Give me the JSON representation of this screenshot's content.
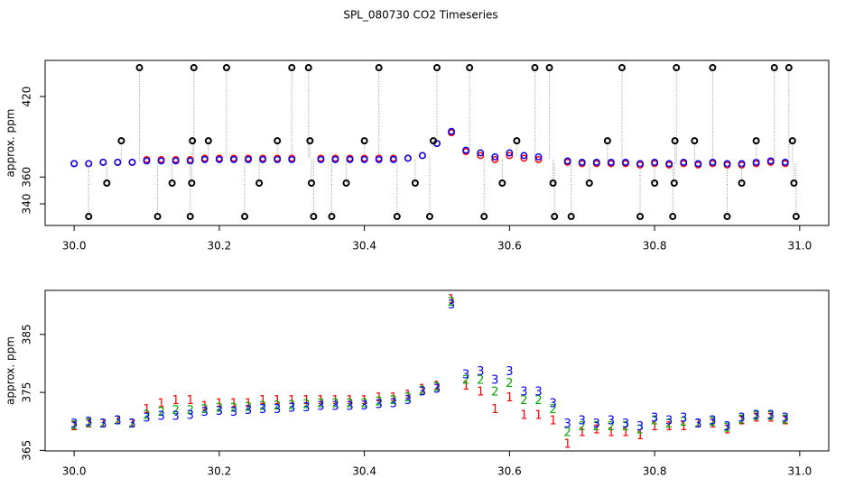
{
  "chart_data": [
    {
      "type": "scatter",
      "title": "SPL_080730  CO2 Timeseries",
      "ylabel": "approx. ppm",
      "xlim": [
        29.96,
        31.04
      ],
      "xticks": [
        {
          "value": 30,
          "label": "30.0"
        },
        {
          "value": 30.2,
          "label": "30.2"
        },
        {
          "value": 30.4,
          "label": "30.4"
        },
        {
          "value": 30.6,
          "label": "30.6"
        },
        {
          "value": 30.8,
          "label": "30.8"
        },
        {
          "value": 31,
          "label": "31.0"
        }
      ],
      "ylim": [
        323.9,
        446.9
      ],
      "yticks": [
        340,
        360,
        420
      ],
      "x": [
        30.0,
        30.02,
        30.04,
        30.06,
        30.08,
        30.1,
        30.12,
        30.14,
        30.16,
        30.18,
        30.2,
        30.22,
        30.24,
        30.26,
        30.28,
        30.3,
        30.32,
        30.34,
        30.36,
        30.38,
        30.4,
        30.42,
        30.44,
        30.46,
        30.48,
        30.5,
        30.52,
        30.54,
        30.56,
        30.58,
        30.6,
        30.62,
        30.64,
        30.66,
        30.68,
        30.7,
        30.72,
        30.74,
        30.76,
        30.78,
        30.8,
        30.82,
        30.84,
        30.86,
        30.88,
        30.9,
        30.92,
        30.94,
        30.96,
        30.98
      ],
      "series": [
        {
          "color": "#ff0000",
          "values": [
            370,
            370,
            371,
            371,
            371,
            373,
            373,
            373,
            373,
            374,
            374,
            374,
            374,
            374,
            374,
            374,
            null,
            374,
            374,
            374,
            374,
            374,
            374,
            374,
            376,
            385,
            393,
            379,
            376,
            373,
            376,
            374,
            373,
            null,
            371,
            370,
            370,
            370,
            370,
            369,
            370,
            369,
            370,
            369,
            370,
            369,
            369,
            370,
            371,
            370
          ]
        },
        {
          "color": "#0000ff",
          "values": [
            370,
            370,
            371,
            371,
            371,
            372,
            372,
            372,
            372,
            373,
            373,
            373,
            373,
            373,
            373,
            373,
            null,
            373,
            373,
            373,
            373,
            373,
            373,
            374,
            376,
            385,
            394,
            380,
            378,
            375,
            378,
            376,
            375,
            null,
            372,
            371,
            371,
            371,
            371,
            370,
            371,
            370,
            371,
            370,
            371,
            370,
            370,
            371,
            372,
            371
          ]
        },
        {
          "color": "#000000",
          "x": [
            30.02,
            30.045,
            30.065,
            30.09,
            30.115,
            30.135,
            30.16,
            30.162,
            30.163,
            30.165,
            30.185,
            30.21,
            30.235,
            30.255,
            30.28,
            30.3,
            30.323,
            30.325,
            30.327,
            30.33,
            30.355,
            30.375,
            30.4,
            30.42,
            30.445,
            30.47,
            30.49,
            30.495,
            30.5,
            30.545,
            30.565,
            30.59,
            30.61,
            30.635,
            30.655,
            30.66,
            30.662,
            30.685,
            30.71,
            30.735,
            30.755,
            30.78,
            30.8,
            30.825,
            30.827,
            30.828,
            30.83,
            30.855,
            30.88,
            30.9,
            30.92,
            30.94,
            30.965,
            30.985,
            30.99,
            30.992,
            30.995
          ],
          "values": [
            330.6,
            355.5,
            387,
            441.5,
            330.6,
            355.5,
            330.6,
            355.5,
            387,
            441.5,
            387,
            441.5,
            330.6,
            355.5,
            387,
            441.5,
            441.5,
            387,
            355.5,
            330.6,
            330.6,
            355.5,
            387,
            441.5,
            330.6,
            355.5,
            330.6,
            387,
            441.5,
            441.5,
            330.6,
            355.5,
            387,
            441.5,
            441.5,
            355.5,
            330.6,
            330.6,
            355.5,
            387,
            441.5,
            330.6,
            355.5,
            330.6,
            355.5,
            387,
            441.5,
            387,
            441.5,
            330.6,
            355.5,
            387,
            441.5,
            441.5,
            387,
            355.5,
            330.6
          ]
        }
      ]
    },
    {
      "type": "scatter",
      "ylabel": "approx. ppm",
      "xlim": [
        29.96,
        31.04
      ],
      "xticks": [
        {
          "value": 30,
          "label": "30.0"
        },
        {
          "value": 30.2,
          "label": "30.2"
        },
        {
          "value": 30.4,
          "label": "30.4"
        },
        {
          "value": 30.6,
          "label": "30.6"
        },
        {
          "value": 30.8,
          "label": "30.8"
        },
        {
          "value": 31,
          "label": "31.0"
        }
      ],
      "ylim": [
        364.9,
        392.6
      ],
      "yticks": [
        365,
        375,
        385
      ],
      "x": [
        30.0,
        30.02,
        30.04,
        30.06,
        30.08,
        30.1,
        30.12,
        30.14,
        30.16,
        30.18,
        30.2,
        30.22,
        30.24,
        30.26,
        30.28,
        30.3,
        30.32,
        30.34,
        30.36,
        30.38,
        30.4,
        30.42,
        30.44,
        30.46,
        30.48,
        30.5,
        30.52,
        30.54,
        30.56,
        30.58,
        30.6,
        30.62,
        30.64,
        30.66,
        30.68,
        30.7,
        30.72,
        30.74,
        30.76,
        30.78,
        30.8,
        30.82,
        30.84,
        30.86,
        30.88,
        30.9,
        30.92,
        30.94,
        30.96,
        30.98
      ],
      "series": [
        {
          "color": "#ff0000",
          "marker": "1",
          "values": [
            369,
            369.5,
            369.5,
            370,
            369.5,
            372,
            373,
            373.5,
            373.5,
            372.5,
            373,
            373,
            373,
            373.5,
            373.5,
            373.5,
            373.5,
            373.5,
            373.5,
            373.5,
            373.5,
            374,
            374,
            374.5,
            375.5,
            376,
            391,
            376,
            375,
            372,
            374,
            371,
            371,
            370,
            366,
            368,
            368.5,
            368,
            368,
            367.5,
            369,
            369,
            369,
            369.5,
            369.5,
            368.5,
            370,
            370.5,
            370.5,
            370
          ]
        },
        {
          "color": "#00aa00",
          "marker": "2",
          "values": [
            369.2,
            369.6,
            369.5,
            370,
            369.5,
            371,
            371.5,
            371.8,
            371.8,
            372,
            372.2,
            372.2,
            372.4,
            372.5,
            372.6,
            372.7,
            372.8,
            373,
            373,
            373,
            373,
            373.3,
            373.5,
            374,
            375.2,
            375.8,
            390.5,
            377,
            377,
            375,
            376.5,
            373.5,
            373.5,
            372,
            368,
            369,
            369,
            369,
            369,
            368.5,
            370,
            369.5,
            369.8,
            369.5,
            369.8,
            368.8,
            370.2,
            370.8,
            370.8,
            370.2
          ]
        },
        {
          "color": "#0000ff",
          "marker": "3",
          "values": [
            369.5,
            369.8,
            369.5,
            370,
            369.5,
            370.5,
            370.8,
            370.8,
            371,
            371.5,
            371.7,
            371.5,
            371.8,
            372,
            372,
            372.2,
            372.3,
            372.5,
            372.5,
            372.5,
            372.6,
            372.8,
            373,
            373.5,
            375,
            375.5,
            390,
            378,
            378.5,
            377,
            378.5,
            375,
            375,
            373,
            369.5,
            370,
            369.5,
            370,
            369.5,
            369,
            370.5,
            370,
            370.5,
            369.5,
            370,
            369,
            370.5,
            371,
            371,
            370.5
          ]
        }
      ]
    }
  ]
}
